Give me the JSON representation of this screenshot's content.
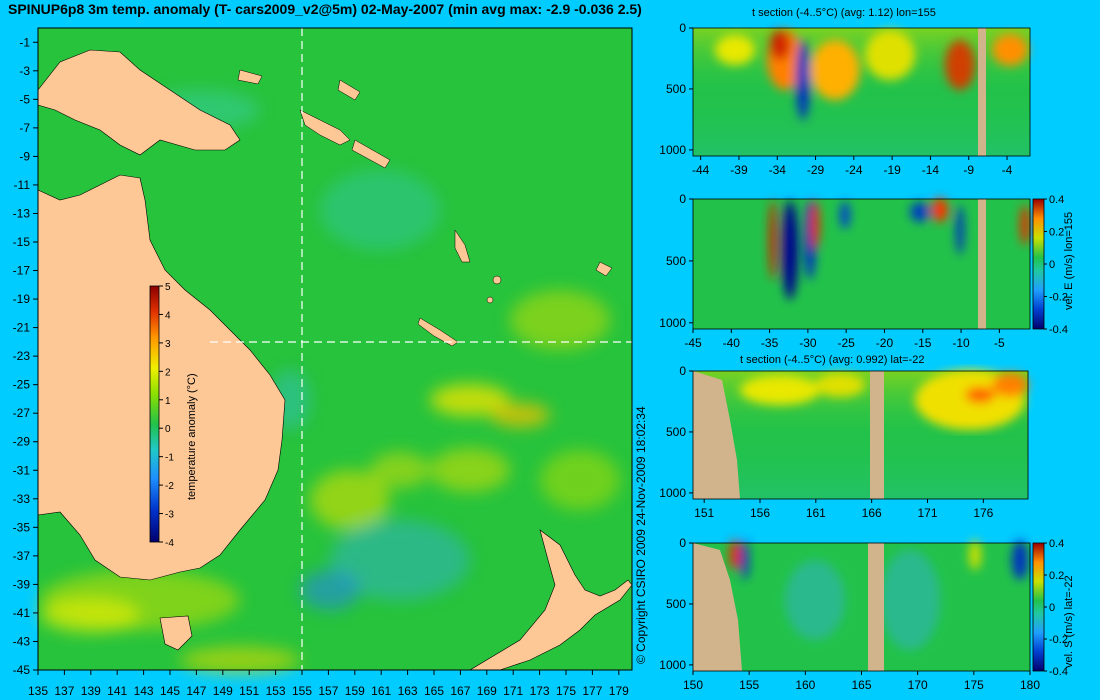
{
  "chart_data": [
    {
      "type": "heatmap",
      "title": "SPINUP6p8 3m temp. anomaly (T- cars2009_v2@5m) 02-May-2007 (min avg max: -2.9 -0.036 2.5)",
      "x_ticks": [
        "135",
        "137",
        "139",
        "141",
        "143",
        "145",
        "147",
        "149",
        "151",
        "153",
        "155",
        "157",
        "159",
        "161",
        "163",
        "165",
        "167",
        "169",
        "171",
        "173",
        "175",
        "177",
        "179"
      ],
      "y_ticks": [
        "-1",
        "-3",
        "-5",
        "-7",
        "-9",
        "-11",
        "-13",
        "-15",
        "-17",
        "-19",
        "-21",
        "-23",
        "-25",
        "-27",
        "-29",
        "-31",
        "-33",
        "-35",
        "-37",
        "-39",
        "-41",
        "-43",
        "-45"
      ],
      "xlim": [
        135,
        180
      ],
      "ylim": [
        -45,
        0
      ],
      "section_lines": {
        "lon": 155,
        "lat": -22
      },
      "colorbar": {
        "label": "temperature anomaly (°C)",
        "ticks": [
          "5",
          "4",
          "3",
          "2",
          "1",
          "0",
          "-1",
          "-2",
          "-3",
          "-4"
        ],
        "range": [
          -4,
          5
        ]
      },
      "stats": {
        "min": -2.9,
        "avg": -0.036,
        "max": 2.5
      }
    },
    {
      "type": "heatmap",
      "title": "t section (-4..5°C) (avg: 1.12) lon=155",
      "x_ticks": [
        "-44",
        "-39",
        "-34",
        "-29",
        "-24",
        "-19",
        "-14",
        "-9",
        "-4"
      ],
      "y_ticks": [
        "0",
        "500",
        "1000"
      ],
      "xlim": [
        -45,
        -1
      ],
      "ylim": [
        1050,
        0
      ]
    },
    {
      "type": "heatmap",
      "title": "",
      "x_ticks": [
        "-45",
        "-40",
        "-35",
        "-30",
        "-25",
        "-20",
        "-15",
        "-10",
        "-5"
      ],
      "y_ticks": [
        "0",
        "500",
        "1000"
      ],
      "xlim": [
        -45,
        -1
      ],
      "ylim": [
        1050,
        0
      ],
      "colorbar": {
        "label": "vel. E (m/s) lon=155",
        "ticks": [
          "0.4",
          "0.2",
          "0",
          "-0.2",
          "-0.4"
        ],
        "range": [
          -0.4,
          0.4
        ]
      }
    },
    {
      "type": "heatmap",
      "title": "t section (-4..5°C) (avg: 0.992) lat=-22",
      "x_ticks": [
        "151",
        "156",
        "161",
        "166",
        "171",
        "176"
      ],
      "y_ticks": [
        "0",
        "500",
        "1000"
      ],
      "xlim": [
        150,
        180
      ],
      "ylim": [
        1050,
        0
      ]
    },
    {
      "type": "heatmap",
      "title": "",
      "x_ticks": [
        "150",
        "155",
        "160",
        "165",
        "170",
        "175",
        "180"
      ],
      "y_ticks": [
        "0",
        "500",
        "1000"
      ],
      "xlim": [
        150,
        180
      ],
      "ylim": [
        1050,
        0
      ],
      "colorbar": {
        "label": "vel. S (m/s) lat=-22",
        "ticks": [
          "0.4",
          "0.2",
          "0",
          "-0.2",
          "-0.4"
        ],
        "range": [
          -0.4,
          0.4
        ]
      }
    }
  ],
  "copyright": "© Copyright CSIRO 2009   24-Nov-2009 18:02:34",
  "colors": {
    "background": "#00ccff",
    "land_map": "#fdc896",
    "land_section": "#d2b48c",
    "anomaly_base": "#27c33c"
  }
}
